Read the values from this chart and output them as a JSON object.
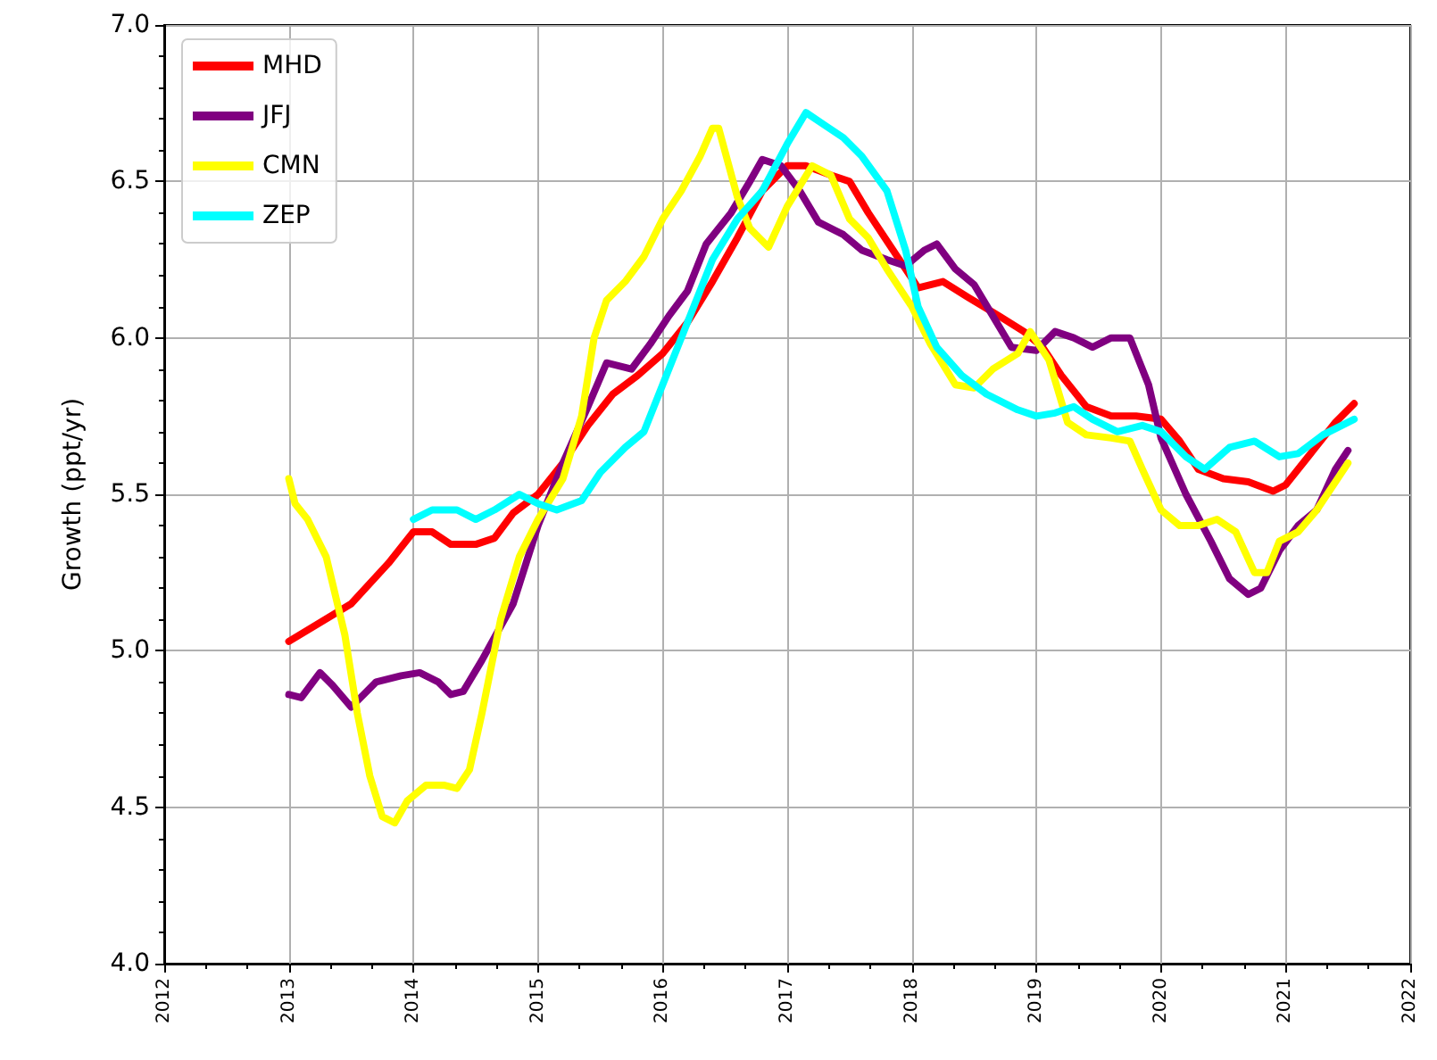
{
  "chart_data": {
    "type": "line",
    "ylabel": "Growth (ppt/yr)",
    "xlim": [
      2012,
      2022
    ],
    "xticks": [
      2012,
      2013,
      2014,
      2015,
      2016,
      2017,
      2018,
      2019,
      2020,
      2021,
      2022
    ],
    "ylim": [
      4.0,
      7.0
    ],
    "yticks": [
      {
        "value": 4.0,
        "label": "4.0"
      },
      {
        "value": 4.5,
        "label": "4.5"
      },
      {
        "value": 5.0,
        "label": "5.0"
      },
      {
        "value": 5.5,
        "label": "5.5"
      },
      {
        "value": 6.0,
        "label": "6.0"
      },
      {
        "value": 6.5,
        "label": "6.5"
      },
      {
        "value": 7.0,
        "label": "7.0"
      }
    ],
    "grid": true,
    "legend": "top left",
    "marker": "none",
    "line_style": "solid",
    "series": [
      {
        "name": "MHD",
        "color": "#ff0000",
        "x": [
          2013,
          2013.5,
          2013.8,
          2014.0,
          2014.15,
          2014.3,
          2014.5,
          2014.65,
          2014.8,
          2015.0,
          2015.2,
          2015.4,
          2015.6,
          2015.8,
          2016.0,
          2016.2,
          2016.4,
          2016.6,
          2016.8,
          2017.0,
          2017.15,
          2017.35,
          2017.5,
          2017.65,
          2017.85,
          2018.05,
          2018.25,
          2018.45,
          2018.7,
          2018.9,
          2019.05,
          2019.2,
          2019.4,
          2019.6,
          2019.8,
          2020.0,
          2020.15,
          2020.3,
          2020.5,
          2020.7,
          2020.9,
          2021.0,
          2021.2,
          2021.4,
          2021.55
        ],
        "values": [
          5.03,
          5.15,
          5.28,
          5.38,
          5.38,
          5.34,
          5.34,
          5.36,
          5.44,
          5.5,
          5.6,
          5.72,
          5.82,
          5.88,
          5.95,
          6.05,
          6.18,
          6.32,
          6.47,
          6.55,
          6.55,
          6.52,
          6.5,
          6.4,
          6.28,
          6.16,
          6.18,
          6.13,
          6.07,
          6.02,
          5.97,
          5.88,
          5.78,
          5.75,
          5.75,
          5.74,
          5.67,
          5.58,
          5.55,
          5.54,
          5.51,
          5.53,
          5.63,
          5.73,
          5.79
        ]
      },
      {
        "name": "JFJ",
        "color": "#800080",
        "x": [
          2013,
          2013.1,
          2013.25,
          2013.35,
          2013.5,
          2013.7,
          2013.9,
          2014.05,
          2014.2,
          2014.3,
          2014.4,
          2014.55,
          2014.8,
          2015.0,
          2015.2,
          2015.4,
          2015.55,
          2015.75,
          2015.9,
          2016.05,
          2016.2,
          2016.35,
          2016.55,
          2016.7,
          2016.8,
          2016.95,
          2017.1,
          2017.25,
          2017.45,
          2017.6,
          2017.8,
          2017.95,
          2018.1,
          2018.2,
          2018.35,
          2018.5,
          2018.65,
          2018.8,
          2019.0,
          2019.15,
          2019.3,
          2019.45,
          2019.6,
          2019.75,
          2019.9,
          2020.0,
          2020.2,
          2020.4,
          2020.55,
          2020.7,
          2020.8,
          2020.95,
          2021.1,
          2021.25,
          2021.4,
          2021.5
        ],
        "values": [
          4.86,
          4.85,
          4.93,
          4.89,
          4.82,
          4.9,
          4.92,
          4.93,
          4.9,
          4.86,
          4.87,
          4.97,
          5.15,
          5.4,
          5.6,
          5.78,
          5.92,
          5.9,
          5.98,
          6.07,
          6.15,
          6.3,
          6.4,
          6.5,
          6.57,
          6.55,
          6.47,
          6.37,
          6.33,
          6.28,
          6.25,
          6.23,
          6.28,
          6.3,
          6.22,
          6.17,
          6.07,
          5.97,
          5.96,
          6.02,
          6.0,
          5.97,
          6.0,
          6.0,
          5.85,
          5.68,
          5.5,
          5.35,
          5.23,
          5.18,
          5.2,
          5.32,
          5.4,
          5.45,
          5.58,
          5.64
        ]
      },
      {
        "name": "CMN",
        "color": "#ffff00",
        "x": [
          2013,
          2013.05,
          2013.15,
          2013.3,
          2013.45,
          2013.55,
          2013.65,
          2013.75,
          2013.85,
          2013.95,
          2014.1,
          2014.25,
          2014.35,
          2014.45,
          2014.55,
          2014.7,
          2014.85,
          2015.0,
          2015.2,
          2015.35,
          2015.45,
          2015.55,
          2015.7,
          2015.85,
          2016.0,
          2016.15,
          2016.3,
          2016.4,
          2016.45,
          2016.6,
          2016.7,
          2016.85,
          2017.0,
          2017.2,
          2017.35,
          2017.5,
          2017.65,
          2017.8,
          2018.0,
          2018.15,
          2018.35,
          2018.5,
          2018.65,
          2018.85,
          2018.95,
          2019.1,
          2019.25,
          2019.4,
          2019.6,
          2019.75,
          2019.85,
          2020.0,
          2020.15,
          2020.3,
          2020.45,
          2020.6,
          2020.75,
          2020.85,
          2020.95,
          2021.1,
          2021.25,
          2021.5
        ],
        "values": [
          5.55,
          5.47,
          5.42,
          5.3,
          5.05,
          4.8,
          4.6,
          4.47,
          4.45,
          4.52,
          4.57,
          4.57,
          4.56,
          4.62,
          4.8,
          5.1,
          5.3,
          5.42,
          5.55,
          5.75,
          6.0,
          6.12,
          6.18,
          6.26,
          6.38,
          6.47,
          6.58,
          6.67,
          6.67,
          6.45,
          6.35,
          6.29,
          6.42,
          6.55,
          6.52,
          6.38,
          6.32,
          6.22,
          6.1,
          5.98,
          5.85,
          5.84,
          5.9,
          5.95,
          6.02,
          5.93,
          5.73,
          5.69,
          5.68,
          5.67,
          5.58,
          5.45,
          5.4,
          5.4,
          5.42,
          5.38,
          5.25,
          5.25,
          5.35,
          5.38,
          5.45,
          5.6
        ]
      },
      {
        "name": "ZEP",
        "color": "#00ffff",
        "x": [
          2014.0,
          2014.15,
          2014.35,
          2014.5,
          2014.65,
          2014.85,
          2015.0,
          2015.15,
          2015.35,
          2015.5,
          2015.7,
          2015.85,
          2016.0,
          2016.2,
          2016.4,
          2016.6,
          2016.8,
          2017.0,
          2017.15,
          2017.3,
          2017.45,
          2017.6,
          2017.8,
          2017.95,
          2018.05,
          2018.2,
          2018.4,
          2018.6,
          2018.85,
          2019.0,
          2019.15,
          2019.3,
          2019.45,
          2019.65,
          2019.85,
          2020.0,
          2020.2,
          2020.35,
          2020.55,
          2020.75,
          2020.95,
          2021.1,
          2021.3,
          2021.55
        ],
        "values": [
          5.42,
          5.45,
          5.45,
          5.42,
          5.45,
          5.5,
          5.47,
          5.45,
          5.48,
          5.57,
          5.65,
          5.7,
          5.85,
          6.05,
          6.25,
          6.38,
          6.47,
          6.62,
          6.72,
          6.68,
          6.64,
          6.58,
          6.47,
          6.28,
          6.1,
          5.97,
          5.88,
          5.82,
          5.77,
          5.75,
          5.76,
          5.78,
          5.74,
          5.7,
          5.72,
          5.7,
          5.62,
          5.58,
          5.65,
          5.67,
          5.62,
          5.63,
          5.69,
          5.74
        ]
      }
    ]
  }
}
